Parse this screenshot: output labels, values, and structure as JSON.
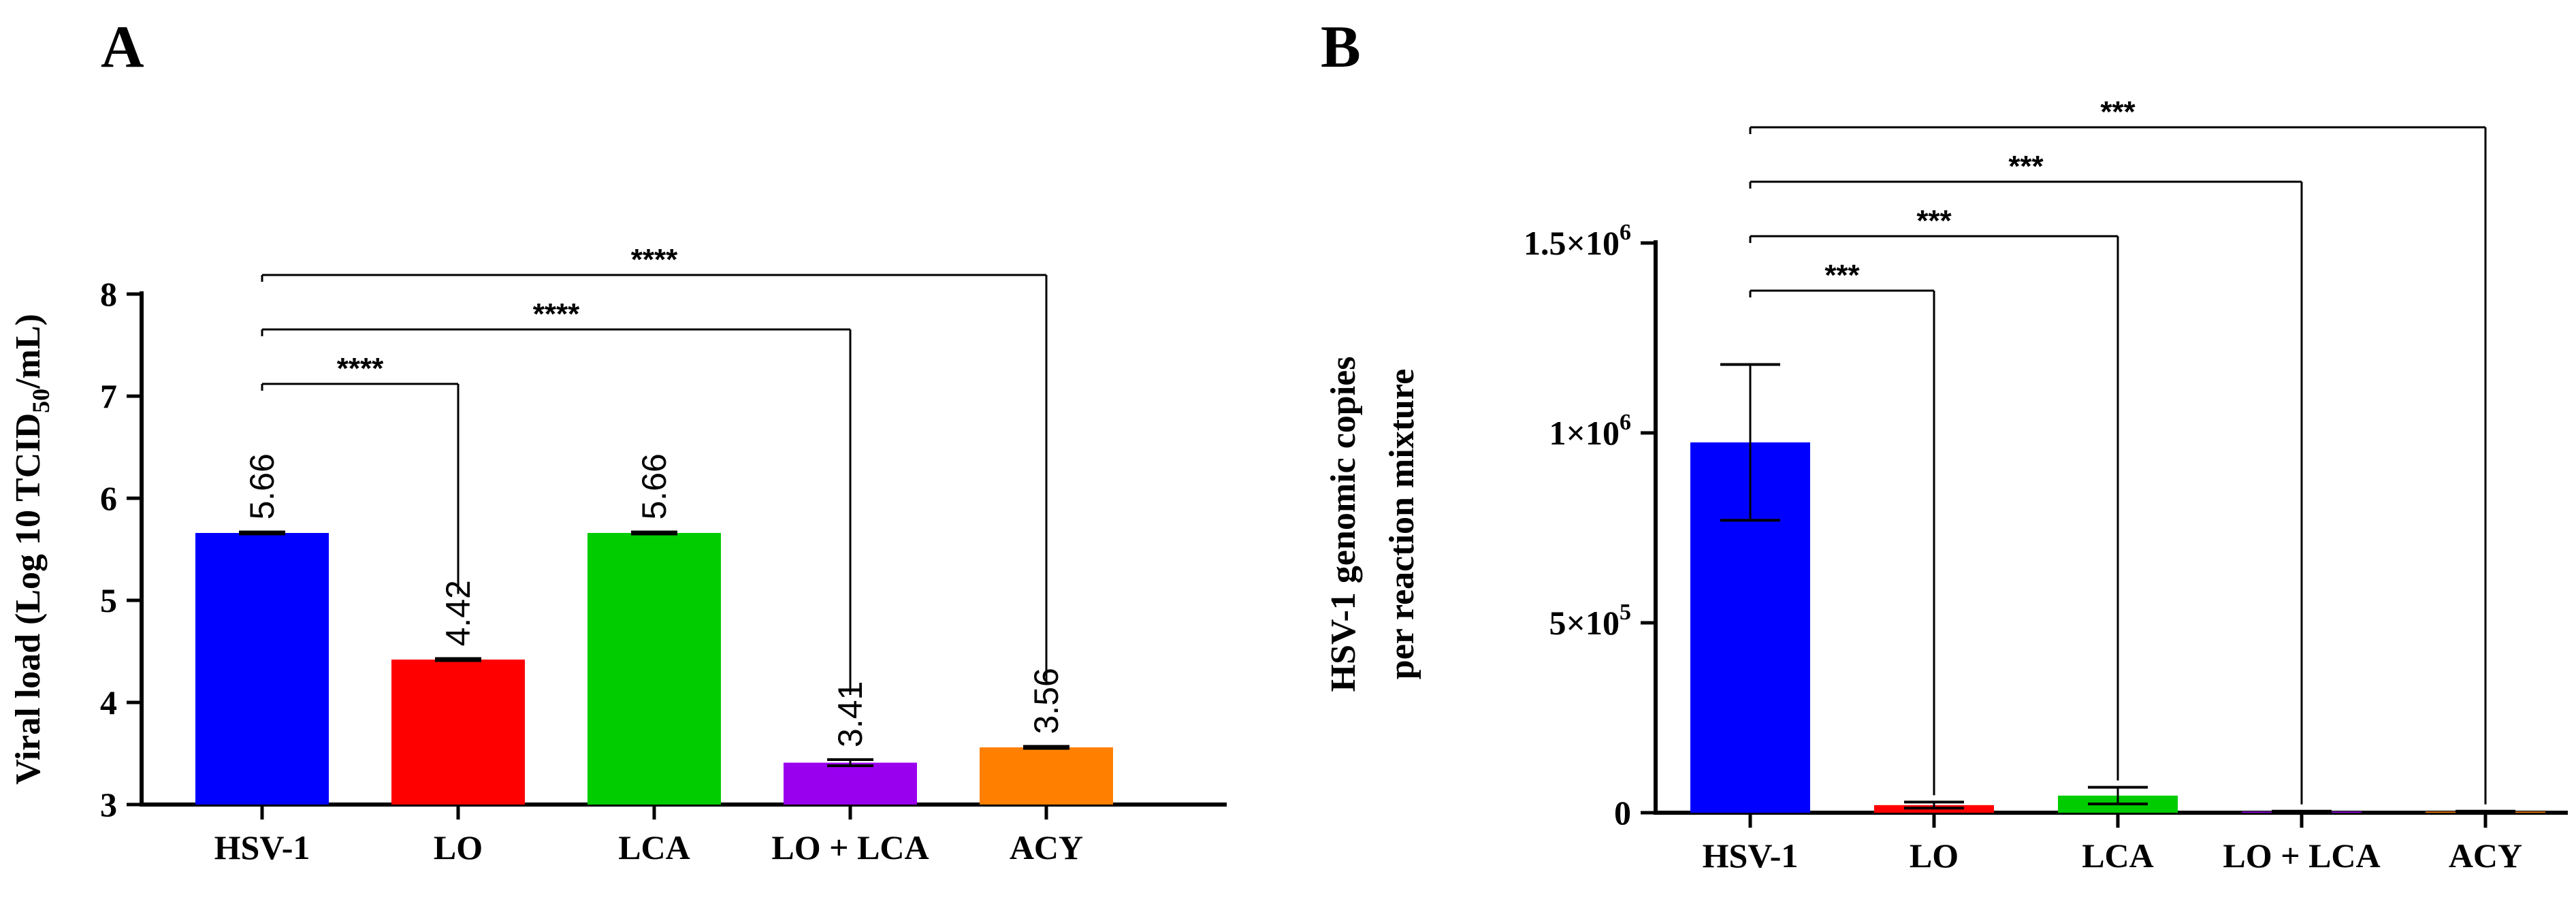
{
  "panels": [
    {
      "letter": "A"
    },
    {
      "letter": "B"
    }
  ],
  "colors": {
    "HSV-1": "#0000ff",
    "LO": "#ff0000",
    "LCA": "#00cc00",
    "LO + LCA": "#9900ee",
    "ACY": "#ff8000",
    "axis": "#000000"
  },
  "chart_data": [
    {
      "type": "bar",
      "panel": "A",
      "categories": [
        "HSV-1",
        "LO",
        "LCA",
        "LO + LCA",
        "ACY"
      ],
      "values": [
        5.66,
        4.42,
        5.66,
        3.41,
        3.56
      ],
      "value_labels": [
        "5.66",
        "4.42",
        "5.66",
        "3.41",
        "3.56"
      ],
      "errors": [
        0.01,
        0.01,
        0.01,
        0.03,
        0.01
      ],
      "ylabel_prefix": "Viral load (Log 10 TCID",
      "ylabel_sub": "50",
      "ylabel_suffix": "/mL)",
      "ylim": [
        3,
        8
      ],
      "yticks": [
        {
          "value": 3,
          "label": "3"
        },
        {
          "value": 4,
          "label": "4"
        },
        {
          "value": 5,
          "label": "5"
        },
        {
          "value": 6,
          "label": "6"
        },
        {
          "value": 7,
          "label": "7"
        },
        {
          "value": 8,
          "label": "8"
        }
      ],
      "significance": [
        {
          "from": "HSV-1",
          "to": "LO",
          "label": "****"
        },
        {
          "from": "HSV-1",
          "to": "LO + LCA",
          "label": "****"
        },
        {
          "from": "HSV-1",
          "to": "ACY",
          "label": "****"
        }
      ]
    },
    {
      "type": "bar",
      "panel": "B",
      "categories": [
        "HSV-1",
        "LO",
        "LCA",
        "LO + LCA",
        "ACY"
      ],
      "values": [
        975000,
        20000,
        45000,
        3000,
        3000
      ],
      "errors": [
        205000,
        8000,
        22000,
        1000,
        1000
      ],
      "ylabel_line1": "HSV-1 genomic copies",
      "ylabel_line2": "per reaction mixture",
      "ylim": [
        0,
        1500000
      ],
      "yticks": [
        {
          "value": 0,
          "label": "0"
        },
        {
          "value": 500000,
          "mant": "5×10",
          "exp": "5"
        },
        {
          "value": 1000000,
          "mant": "1×10",
          "exp": "6"
        },
        {
          "value": 1500000,
          "mant": "1.5×10",
          "exp": "6"
        }
      ],
      "significance": [
        {
          "from": "HSV-1",
          "to": "LO",
          "label": "***"
        },
        {
          "from": "HSV-1",
          "to": "LCA",
          "label": "***"
        },
        {
          "from": "HSV-1",
          "to": "LO + LCA",
          "label": "***"
        },
        {
          "from": "HSV-1",
          "to": "ACY",
          "label": "***"
        }
      ]
    }
  ]
}
